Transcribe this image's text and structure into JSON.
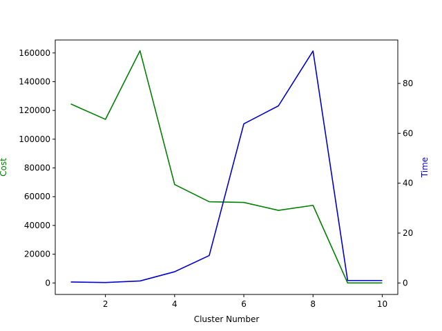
{
  "chart_data": {
    "type": "line",
    "xlabel": "Cluster Number",
    "x": [
      1,
      2,
      3,
      4,
      5,
      6,
      7,
      8,
      9,
      10
    ],
    "xlim": [
      0.55,
      10.45
    ],
    "xticks": [
      2,
      4,
      6,
      8,
      10
    ],
    "grid": false,
    "y_left": {
      "label": "Cost",
      "color": "#008000",
      "lim": [
        -8000,
        169000
      ],
      "ticks": [
        0,
        20000,
        40000,
        60000,
        80000,
        100000,
        120000,
        140000,
        160000
      ],
      "tick_labels": [
        "0",
        "20000",
        "40000",
        "60000",
        "80000",
        "100000",
        "120000",
        "140000",
        "160000"
      ]
    },
    "y_right": {
      "label": "Time",
      "color": "#0000cc",
      "lim": [
        -4.6,
        97.4
      ],
      "ticks": [
        0,
        20,
        40,
        60,
        80
      ],
      "tick_labels": [
        "0",
        "20",
        "40",
        "60",
        "80"
      ]
    },
    "series": [
      {
        "axis": "left",
        "color": "#008000",
        "values": [
          124500,
          113800,
          161500,
          68500,
          56500,
          56000,
          50500,
          54000,
          0,
          0
        ]
      },
      {
        "axis": "right",
        "color": "#0000cc",
        "values": [
          0.4,
          0.2,
          0.8,
          4.5,
          11.0,
          63.8,
          71.0,
          93.0,
          1.0,
          1.0
        ]
      }
    ]
  }
}
